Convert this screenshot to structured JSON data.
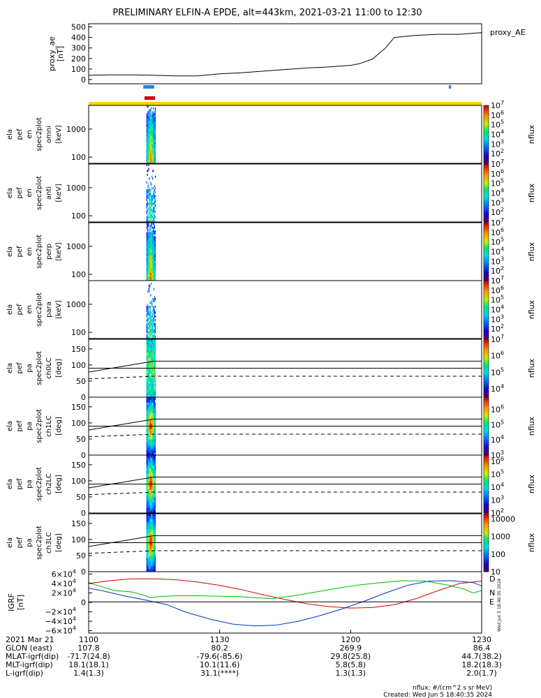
{
  "title": "PRELIMINARY ELFIN-A EPDE, alt=443km, 2021-03-21 11:00 to 12:30",
  "colors": {
    "blue_bar": "#1e88e5",
    "red_bar": "#d50000",
    "yellow_bar": "#ffd400",
    "bx": "#d50000",
    "by": "#0033cc",
    "bz": "#00bb00",
    "black": "#000000"
  },
  "chart_data": [
    {
      "type": "line",
      "name": "proxy_ae",
      "ylabel_lines": [
        "proxy_ae",
        "[nT]"
      ],
      "legend": "proxy_AE",
      "yticks": [
        0,
        100,
        200,
        300,
        400,
        500
      ],
      "ylim": [
        -40,
        530
      ],
      "xlim": [
        0,
        90
      ],
      "x": [
        0,
        5,
        10,
        15,
        20,
        25,
        30,
        35,
        40,
        45,
        50,
        55,
        60,
        62,
        65,
        68,
        70,
        75,
        80,
        85,
        90
      ],
      "y": [
        40,
        45,
        45,
        40,
        35,
        35,
        55,
        65,
        80,
        95,
        110,
        120,
        135,
        150,
        195,
        300,
        400,
        420,
        430,
        430,
        445
      ],
      "markers": [
        {
          "x0": 12.5,
          "x1": 15.0,
          "color": "blue"
        },
        {
          "x0": 82.5,
          "x1": 83.0,
          "color": "blue"
        },
        {
          "x0": 12.8,
          "x1": 15.2,
          "color": "red"
        },
        {
          "x0": 0,
          "x1": 90,
          "color": "yellow"
        }
      ]
    },
    {
      "type": "heatmap",
      "name": "spec-omni",
      "ylabel_lines": [
        "ela",
        "pef",
        "en",
        "spec2plot",
        "omni",
        "[keV]"
      ],
      "ylog": true,
      "yticks": [
        100,
        1000
      ],
      "ylim": [
        60,
        7000
      ],
      "zlabel": "nflux",
      "ztick_exps": [
        2,
        3,
        4,
        5,
        6,
        7
      ],
      "zlim_exp": [
        1,
        7
      ]
    },
    {
      "type": "heatmap",
      "name": "spec-anti",
      "ylabel_lines": [
        "ela",
        "pef",
        "en",
        "spec2plot",
        "anti",
        "[keV]"
      ],
      "ylog": true,
      "yticks": [
        100,
        1000
      ],
      "ylim": [
        60,
        7000
      ],
      "zlabel": "nflux",
      "ztick_exps": [
        2,
        3,
        4,
        5,
        6,
        7
      ],
      "zlim_exp": [
        1,
        7
      ]
    },
    {
      "type": "heatmap",
      "name": "spec-perp",
      "ylabel_lines": [
        "ela",
        "pef",
        "en",
        "spec2plot",
        "perp",
        "[keV]"
      ],
      "ylog": true,
      "yticks": [
        100,
        1000
      ],
      "ylim": [
        60,
        7000
      ],
      "zlabel": "nflux",
      "ztick_exps": [
        2,
        3,
        4,
        5,
        6,
        7
      ],
      "zlim_exp": [
        1,
        7
      ]
    },
    {
      "type": "heatmap",
      "name": "spec-para",
      "ylabel_lines": [
        "ela",
        "pef",
        "en",
        "spec2plot",
        "para",
        "[keV]"
      ],
      "ylog": true,
      "yticks": [
        100,
        1000
      ],
      "ylim": [
        60,
        7000
      ],
      "zlabel": "nflux",
      "ztick_exps": [
        2,
        3,
        4,
        5,
        6,
        7
      ],
      "zlim_exp": [
        1,
        7
      ]
    },
    {
      "type": "heatmap",
      "name": "pa-ch0",
      "ylabel_lines": [
        "ela",
        "pef",
        "pa",
        "spec2plot",
        "ch0LC",
        "[deg]"
      ],
      "ylog": false,
      "yticks": [
        0,
        50,
        100,
        150
      ],
      "ylim": [
        0,
        180
      ],
      "zlabel": "nflux",
      "ztick_exps": [
        4,
        5,
        6,
        7
      ],
      "zlim_exp": [
        3.5,
        7
      ]
    },
    {
      "type": "heatmap",
      "name": "pa-ch1",
      "ylabel_lines": [
        "ela",
        "pef",
        "pa",
        "spec2plot",
        "ch1LC",
        "[deg]"
      ],
      "ylog": false,
      "yticks": [
        0,
        50,
        100,
        150
      ],
      "ylim": [
        0,
        180
      ],
      "zlabel": "nflux",
      "ztick_exps": [
        3,
        4,
        5,
        6
      ],
      "zlim_exp": [
        3,
        6.8
      ]
    },
    {
      "type": "heatmap",
      "name": "pa-ch2",
      "ylabel_lines": [
        "ela",
        "pef",
        "pa",
        "spec2plot",
        "ch2LC",
        "[deg]"
      ],
      "ylog": false,
      "yticks": [
        0,
        50,
        100,
        150
      ],
      "ylim": [
        0,
        180
      ],
      "zlabel": "nflux",
      "ztick_exps": [
        2,
        3,
        4,
        5,
        6
      ],
      "zlim_exp": [
        2,
        6.5
      ]
    },
    {
      "type": "heatmap",
      "name": "pa-ch3",
      "ylabel_lines": [
        "ela",
        "pef",
        "pa",
        "spec2plot",
        "ch3LC",
        "[deg]"
      ],
      "ylog": false,
      "yticks": [
        0,
        50,
        100,
        150
      ],
      "ylim": [
        0,
        180
      ],
      "zlabel": "nflux",
      "zticks_plain": [
        "10",
        "100",
        "1000",
        "10000"
      ],
      "zlim_exp": [
        1,
        4.3
      ]
    },
    {
      "type": "line",
      "name": "igrf",
      "ylabel_lines": [
        "IGRF",
        "[nT]"
      ],
      "yticks_mantissa": [
        "-6",
        "-4",
        "-2",
        "0",
        "2",
        "4",
        "6"
      ],
      "ylim": [
        -65000,
        65000
      ],
      "xlim": [
        0,
        90
      ],
      "series": [
        {
          "name": "D",
          "x": [
            0,
            5,
            10,
            15,
            20,
            25,
            30,
            35,
            40,
            45,
            50,
            55,
            60,
            65,
            70,
            75,
            80,
            85,
            90
          ],
          "y": [
            40000,
            46000,
            50000,
            50000,
            48000,
            43000,
            36000,
            27000,
            16000,
            6000,
            -3000,
            -9000,
            -12000,
            -11000,
            -5000,
            8000,
            25000,
            40000,
            45000
          ]
        },
        {
          "name": "N",
          "x": [
            0,
            3,
            8,
            13,
            18,
            22,
            28,
            33,
            38,
            43,
            48,
            53,
            58,
            63,
            68,
            73,
            78,
            83,
            88,
            90
          ],
          "y": [
            30000,
            25000,
            14000,
            5000,
            -5000,
            -20000,
            -36000,
            -46000,
            -50000,
            -48000,
            -40000,
            -28000,
            -14000,
            2000,
            20000,
            36000,
            45000,
            46000,
            42000,
            35000
          ]
        },
        {
          "name": "E",
          "x": [
            0,
            3,
            6,
            10,
            13,
            14,
            16,
            20,
            25,
            30,
            35,
            38,
            42,
            47,
            52,
            57,
            62,
            67,
            72,
            77,
            82,
            86,
            88,
            90
          ],
          "y": [
            42000,
            33000,
            25000,
            22000,
            14000,
            10000,
            12000,
            14000,
            14000,
            13000,
            12000,
            10000,
            8000,
            14000,
            22000,
            30000,
            37000,
            42000,
            46000,
            45000,
            37000,
            28000,
            20000,
            25000
          ]
        },
        {
          "name": "black",
          "x": [
            0,
            90
          ],
          "y": [
            1000,
            1000
          ]
        }
      ]
    }
  ],
  "x_axis": {
    "ticks": [
      "1100",
      "1130",
      "1200",
      "1230"
    ],
    "tick_minutes": [
      0,
      30,
      60,
      90
    ]
  },
  "ephemeris": {
    "rows": [
      {
        "label": "2021 Mar 21",
        "values": [
          "1100",
          "1130",
          "1200",
          "1230"
        ]
      },
      {
        "label": "GLON (east)",
        "values": [
          "107.8",
          "80.2",
          "269.9",
          "86.4"
        ]
      },
      {
        "label": "MLAT-igrf(dip)",
        "values": [
          "-71.7(24.8)",
          "-79.6(-85.6)",
          "29.8(25.8)",
          "44.7(38.2)"
        ]
      },
      {
        "label": "MLT-igrf(dip)",
        "values": [
          "18.1(18.1)",
          "10.1(11.6)",
          "5.8(5.8)",
          "18.2(18.3)"
        ]
      },
      {
        "label": "L-igrf(dip)",
        "values": [
          "1.4(1.3)",
          "31.1(****)",
          "1.3(1.3)",
          "2.0(1.7)"
        ]
      }
    ]
  },
  "footer": {
    "units": "nflux: #/(cm^2 s sr MeV)",
    "created": "Created: Wed Jun  5 18:40:35 2024",
    "side_stamp": "Wed Jun  5 18:40:35 2024"
  },
  "pa_lines": {
    "upper": 112,
    "lower": 90,
    "dashed": 65
  }
}
